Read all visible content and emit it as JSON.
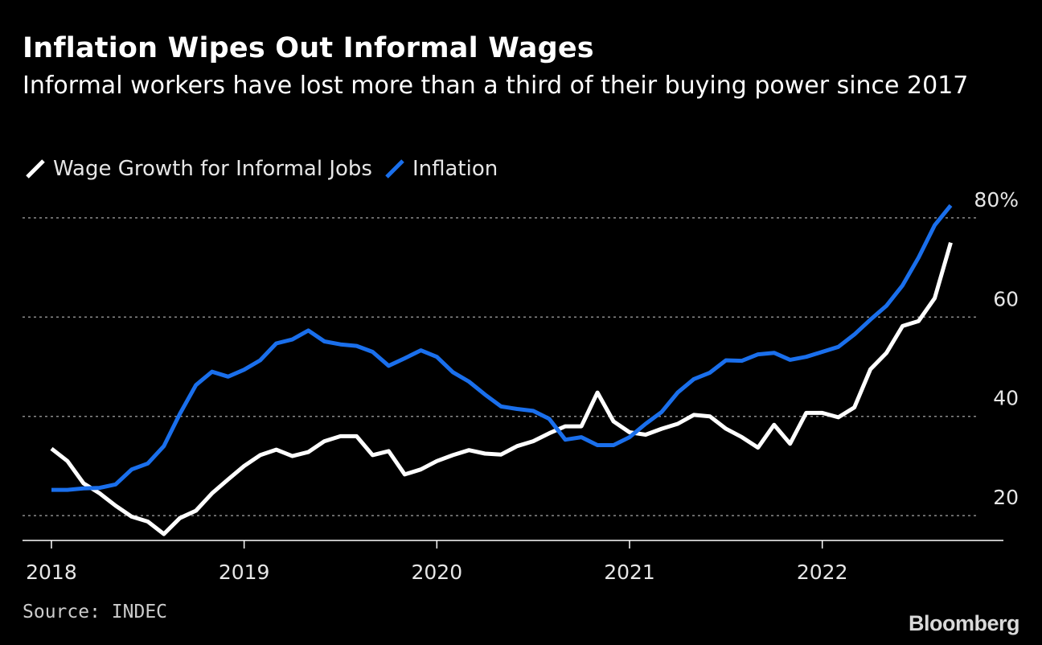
{
  "header": {
    "title": "Inflation Wipes Out Informal Wages",
    "subtitle": "Informal workers have lost more than a third of their buying power since 2017"
  },
  "footer": {
    "source": "Source: INDEC",
    "brand": "Bloomberg"
  },
  "colors": {
    "background": "#000000",
    "wage": "#ffffff",
    "inflation": "#1a6fec",
    "grid": "#8a8a8a",
    "axis": "#ffffff",
    "tick_text": "#e6e6e6"
  },
  "chart_data": {
    "type": "line",
    "title": "Inflation Wipes Out Informal Wages",
    "subtitle": "Informal workers have lost more than a third of their buying power since 2017",
    "xlabel": "",
    "ylabel": "",
    "x_range": [
      2017.85,
      2022.94
    ],
    "ylim": [
      15,
      85
    ],
    "y_ticks": [
      {
        "value": 20,
        "label": "20"
      },
      {
        "value": 40,
        "label": "40"
      },
      {
        "value": 60,
        "label": "60"
      },
      {
        "value": 80,
        "label": "80%"
      }
    ],
    "x_ticks": [
      {
        "value": 2018,
        "label": "2018"
      },
      {
        "value": 2019,
        "label": "2019"
      },
      {
        "value": 2020,
        "label": "2020"
      },
      {
        "value": 2021,
        "label": "2021"
      },
      {
        "value": 2022,
        "label": "2022"
      }
    ],
    "grid": "horizontal dotted",
    "legend_position": "top-left",
    "start_year": 2018,
    "months_per_year": 12,
    "series": [
      {
        "name": "Wage Growth for Informal Jobs",
        "color": "#ffffff",
        "values": [
          33.5,
          31,
          26.5,
          24.5,
          22,
          19.8,
          18.8,
          16.3,
          19.5,
          21,
          24.5,
          27.3,
          30,
          32.2,
          33.3,
          32,
          32.8,
          35,
          36,
          36,
          32.2,
          33,
          28.3,
          29.3,
          31,
          32.2,
          33.2,
          32.5,
          32.3,
          34,
          35,
          36.6,
          38,
          38,
          44.8,
          39,
          36.8,
          36.3,
          37.5,
          38.5,
          40.3,
          40,
          37.5,
          35.8,
          33.7,
          38.3,
          34.5,
          40.7,
          40.7,
          39.8,
          41.8,
          49.5,
          52.8,
          58.2,
          59.2,
          63.8,
          75
        ]
      },
      {
        "name": "Inflation",
        "color": "#1a6fec",
        "values": [
          25.2,
          25.2,
          25.5,
          25.6,
          26.3,
          29.3,
          30.5,
          34,
          40.5,
          46.3,
          49,
          48,
          49.4,
          51.3,
          54.7,
          55.5,
          57.3,
          55.1,
          54.5,
          54.2,
          53,
          50.2,
          51.7,
          53.3,
          52,
          48.9,
          47,
          44.4,
          42,
          41.5,
          41.1,
          39.5,
          35.3,
          35.8,
          34.2,
          34.2,
          35.8,
          38.5,
          40.9,
          44.8,
          47.5,
          48.8,
          51.3,
          51.2,
          52.5,
          52.8,
          51.4,
          52,
          53,
          54,
          56.5,
          59.5,
          62.3,
          66.4,
          72,
          78.5,
          82.5
        ]
      }
    ]
  }
}
